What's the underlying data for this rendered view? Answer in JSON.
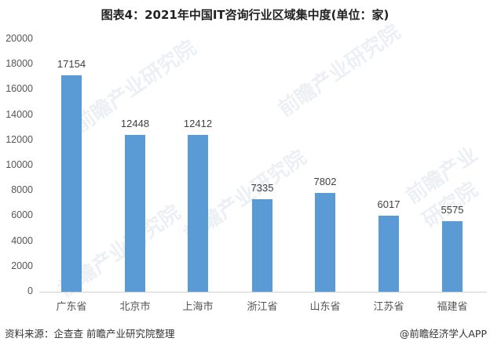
{
  "title": "图表4：2021年中国IT咨询行业区域集中度(单位：家)",
  "source": "资料来源：企查查 前瞻产业研究院整理",
  "credit": "@前瞻经济学人APP",
  "watermark": "前瞻产业研究院",
  "bar_color": "#5b9bd5",
  "chart_data": {
    "type": "bar",
    "title": "图表4：2021年中国IT咨询行业区域集中度(单位：家)",
    "xlabel": "",
    "ylabel": "",
    "ylim": [
      0,
      20000
    ],
    "yticks": [
      "0",
      "2000",
      "4000",
      "6000",
      "8000",
      "10000",
      "12000",
      "14000",
      "16000",
      "18000",
      "20000"
    ],
    "grid": false,
    "legend": "none",
    "categories": [
      "广东省",
      "北京市",
      "上海市",
      "浙江省",
      "山东省",
      "江苏省",
      "福建省"
    ],
    "values": [
      17154,
      12448,
      12412,
      7335,
      7802,
      6017,
      5575
    ],
    "value_labels": [
      "17154",
      "12448",
      "12412",
      "7335",
      "7802",
      "6017",
      "5575"
    ]
  }
}
